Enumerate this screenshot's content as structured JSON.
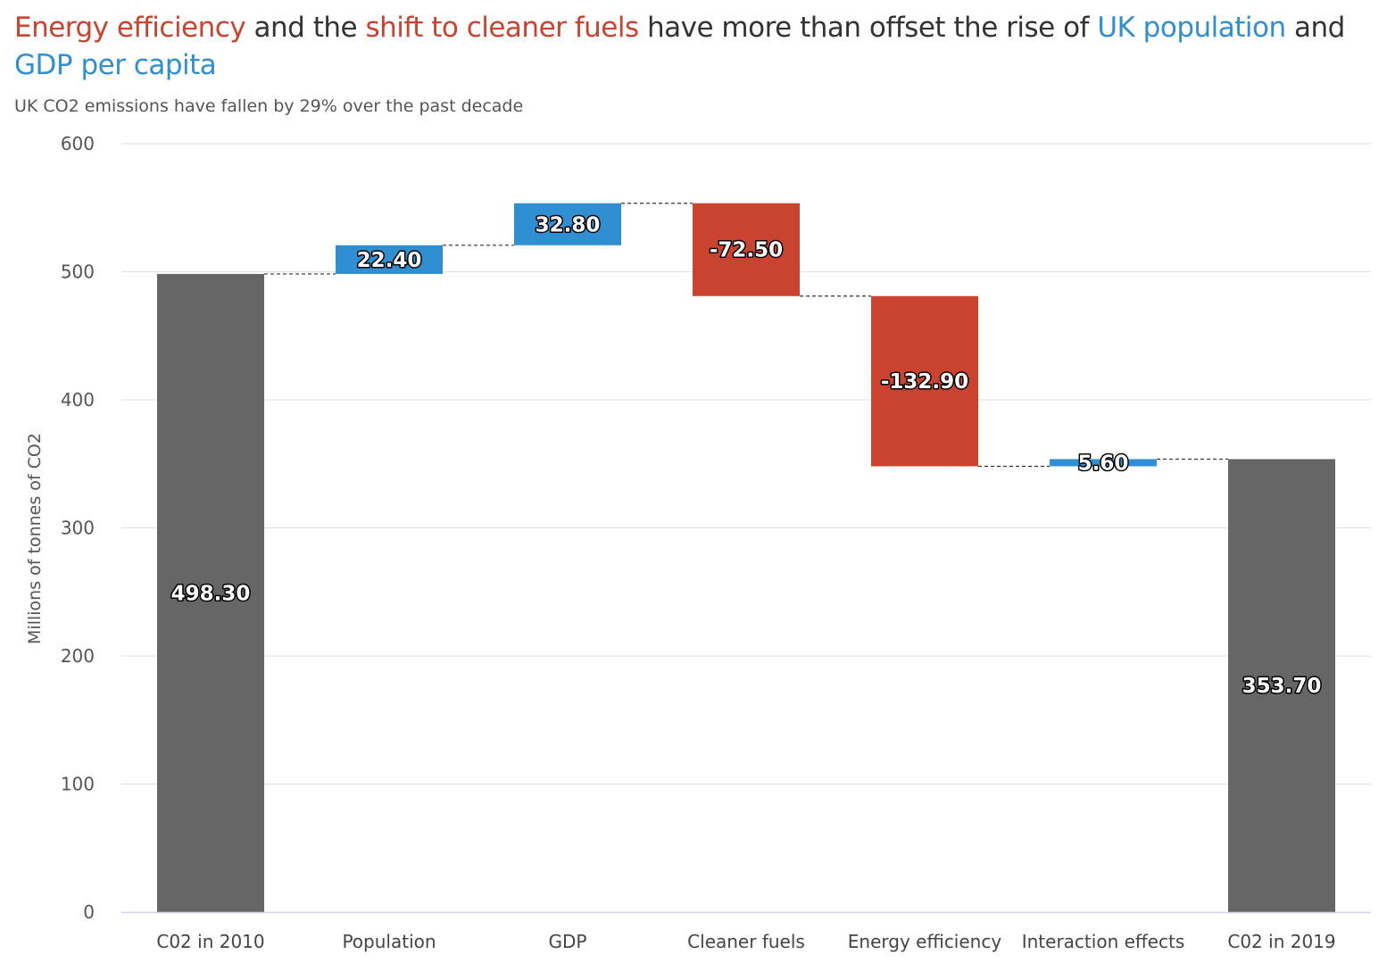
{
  "title_parts": [
    {
      "text": "Energy efficiency",
      "color": "#c9432e"
    },
    {
      "text": " and the ",
      "color": "#333333"
    },
    {
      "text": "shift to cleaner fuels",
      "color": "#c9432e"
    },
    {
      "text": " have more than offset the rise of ",
      "color": "#333333"
    },
    {
      "text": "UK population",
      "color": "#2f8fd0"
    },
    {
      "text": " and ",
      "color": "#333333"
    },
    {
      "text": "GDP per capita",
      "color": "#2f8fd0"
    }
  ],
  "subtitle": "UK CO2 emissions have fallen by 29% over the past decade",
  "colors": {
    "total": "#666666",
    "increase": "#2f8fd0",
    "decrease": "#c9432e",
    "grid": "#e0e0e0",
    "axis": "#ccd6eb"
  },
  "chart_data": {
    "type": "waterfall",
    "ylabel": "Millions of tonnes of CO2",
    "ylim": [
      0,
      600
    ],
    "yticks": [
      0,
      100,
      200,
      300,
      400,
      500,
      600
    ],
    "grid": true,
    "legend": "none",
    "categories": [
      "C02 in 2010",
      "Population",
      "GDP",
      "Cleaner fuels",
      "Energy efficiency",
      "Interaction effects",
      "C02 in 2019"
    ],
    "values": [
      498.3,
      22.4,
      32.8,
      -72.5,
      -132.9,
      5.6,
      353.7
    ],
    "labels": [
      "498.30",
      "22.40",
      "32.80",
      "-72.50",
      "-132.90",
      "5.60",
      "353.70"
    ],
    "kind": [
      "total",
      "increase",
      "increase",
      "decrease",
      "decrease",
      "increase",
      "total"
    ]
  }
}
